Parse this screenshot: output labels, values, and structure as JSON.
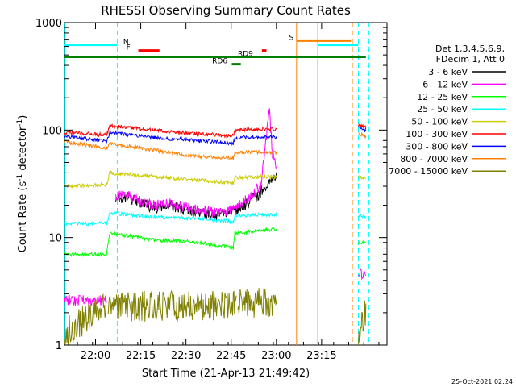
{
  "chart_data": {
    "type": "line",
    "title": "RHESSI Observing Summary Count Rates",
    "xlabel": "Start Time (21-Apr-13 21:49:42)",
    "ylabel_main": "Count Rate (s",
    "ylabel_sup": "-1",
    "ylabel_mid": " detector",
    "ylabel_sup2": "-1",
    "ylabel_end": ")",
    "x_unit": "minutes after 21:49:42",
    "xlim": [
      0,
      107
    ],
    "ylim": [
      1,
      1000
    ],
    "yscale": "log",
    "x_ticks": [
      {
        "x": 10.3,
        "label": "22:00"
      },
      {
        "x": 25.3,
        "label": "22:15"
      },
      {
        "x": 40.3,
        "label": "22:30"
      },
      {
        "x": 55.3,
        "label": "22:45"
      },
      {
        "x": 70.3,
        "label": "23:00"
      },
      {
        "x": 85.3,
        "label": "23:15"
      }
    ],
    "y_ticks": [
      {
        "y": 1,
        "label": "1"
      },
      {
        "y": 10,
        "label": "10"
      },
      {
        "y": 100,
        "label": "100"
      },
      {
        "y": 1000,
        "label": "1000"
      }
    ],
    "legend_header": [
      "Det 1,3,4,5,6,9,",
      "FDecim 1, Att 0"
    ],
    "legend_placement": "right",
    "series": [
      {
        "name": "3 - 6 keV",
        "color": "#000000",
        "segments": [
          {
            "x": [
              17,
              20,
              25,
              30,
              35,
              40,
              45,
              50,
              55,
              60,
              65,
              70.5
            ],
            "y": [
              22,
              24,
              21,
              19,
              20,
              18,
              17,
              16,
              17,
              20,
              26,
              38
            ]
          }
        ]
      },
      {
        "name": "6 - 12 keV",
        "color": "#ff00ff",
        "segments": [
          {
            "x": [
              0,
              14
            ],
            "y": [
              2.6,
              2.6
            ]
          },
          {
            "x": [
              17,
              20,
              25,
              30,
              35,
              40,
              45,
              50,
              55,
              60,
              65,
              68,
              69,
              70.5
            ],
            "y": [
              24,
              25,
              22,
              20,
              21,
              19,
              18,
              17,
              18,
              22,
              30,
              150,
              60,
              45
            ]
          },
          {
            "x": [
              97.5,
              100
            ],
            "y": [
              4.5,
              4.5
            ]
          }
        ]
      },
      {
        "name": "12 - 25 keV",
        "color": "#00ff00",
        "segments": [
          {
            "x": [
              0,
              14,
              15,
              30,
              45,
              56,
              56.5,
              70.5
            ],
            "y": [
              7,
              7,
              11,
              9.5,
              9,
              8,
              11,
              12
            ]
          },
          {
            "x": [
              97.5,
              100
            ],
            "y": [
              9,
              9
            ]
          }
        ]
      },
      {
        "name": "25 - 50 keV",
        "color": "#00ffff",
        "segments": [
          {
            "x": [
              0,
              14,
              15,
              30,
              45,
              56,
              56.5,
              70.5
            ],
            "y": [
              13.5,
              13.5,
              17,
              15.5,
              15,
              14,
              16,
              16.5
            ]
          },
          {
            "x": [
              97.5,
              100
            ],
            "y": [
              16,
              15.5
            ]
          }
        ]
      },
      {
        "name": "50 - 100 keV",
        "color": "#cccc00",
        "segments": [
          {
            "x": [
              0,
              14,
              15,
              30,
              45,
              56,
              56.5,
              70.5
            ],
            "y": [
              30,
              31,
              40,
              37,
              34,
              32,
              36,
              37
            ]
          },
          {
            "x": [
              97.5,
              100
            ],
            "y": [
              37,
              35
            ]
          }
        ]
      },
      {
        "name": "100 - 300 keV",
        "color": "#ff0000",
        "segments": [
          {
            "x": [
              0,
              14,
              15,
              30,
              45,
              56,
              56.5,
              70.5
            ],
            "y": [
              95,
              90,
              110,
              100,
              92,
              88,
              100,
              102
            ]
          },
          {
            "x": [
              97.5,
              100
            ],
            "y": [
              110,
              105
            ]
          }
        ]
      },
      {
        "name": "300 - 800 keV",
        "color": "#0000ff",
        "segments": [
          {
            "x": [
              0,
              14,
              15,
              30,
              45,
              56,
              56.5,
              70.5
            ],
            "y": [
              88,
              78,
              95,
              85,
              80,
              75,
              85,
              87
            ]
          },
          {
            "x": [
              97.5,
              100
            ],
            "y": [
              105,
              98
            ]
          }
        ]
      },
      {
        "name": "800 - 7000 keV",
        "color": "#ff8000",
        "segments": [
          {
            "x": [
              0,
              14,
              15,
              30,
              40,
              56,
              56.5,
              70.5
            ],
            "y": [
              78,
              68,
              75,
              65,
              58,
              55,
              62,
              62
            ]
          },
          {
            "x": [
              97.5,
              100
            ],
            "y": [
              95,
              85
            ]
          }
        ]
      },
      {
        "name": "7000 - 15000 keV",
        "color": "#808000",
        "segments": [
          {
            "x": [
              0,
              14
            ],
            "y": [
              1.3,
              2.3
            ]
          },
          {
            "x": [
              14.5,
              57
            ],
            "y": [
              2.3,
              2.3
            ]
          },
          {
            "x": [
              57.5,
              70.5
            ],
            "y": [
              2.4,
              2.5
            ]
          },
          {
            "x": [
              97.5,
              100
            ],
            "y": [
              1.3,
              2
            ]
          }
        ]
      }
    ],
    "flag_bars": [
      {
        "label": "N",
        "color": "#00ffff",
        "segments": [
          [
            0,
            17.5
          ],
          [
            84,
            97.5
          ]
        ],
        "y": 620,
        "label_x": 19.5
      },
      {
        "label": "F",
        "color": "#ff0000",
        "segments": [
          [
            24.5,
            31.5
          ],
          [
            65.5,
            67
          ]
        ],
        "y": 550,
        "label_x": 20.5
      },
      {
        "label": "S",
        "color": "#ff8000",
        "segments": [
          [
            77,
            95
          ]
        ],
        "y": 680,
        "label_x": 74.5
      },
      {
        "label": "RD9",
        "color": "#008000",
        "segments": [
          [
            0,
            100
          ]
        ],
        "y": 480,
        "label_x": 57.5
      },
      {
        "label": "RD6",
        "color": "#008000",
        "segments": [
          [
            55.5,
            58.5
          ]
        ],
        "y": 410,
        "label_x": 49
      }
    ],
    "vlines": [
      {
        "x": 0.2,
        "color": "#00ffff",
        "dash": false
      },
      {
        "x": 17.5,
        "color": "#00ffff",
        "dash": true
      },
      {
        "x": 77,
        "color": "#ff8000",
        "dash": false
      },
      {
        "x": 84,
        "color": "#00ffff",
        "dash": false
      },
      {
        "x": 95.5,
        "color": "#ff8000",
        "dash": true
      },
      {
        "x": 97.5,
        "color": "#00ffff",
        "dash": true
      },
      {
        "x": 101,
        "color": "#00ffff",
        "dash": true
      }
    ]
  },
  "footer_timestamp": "25-Oct-2021 02:24"
}
